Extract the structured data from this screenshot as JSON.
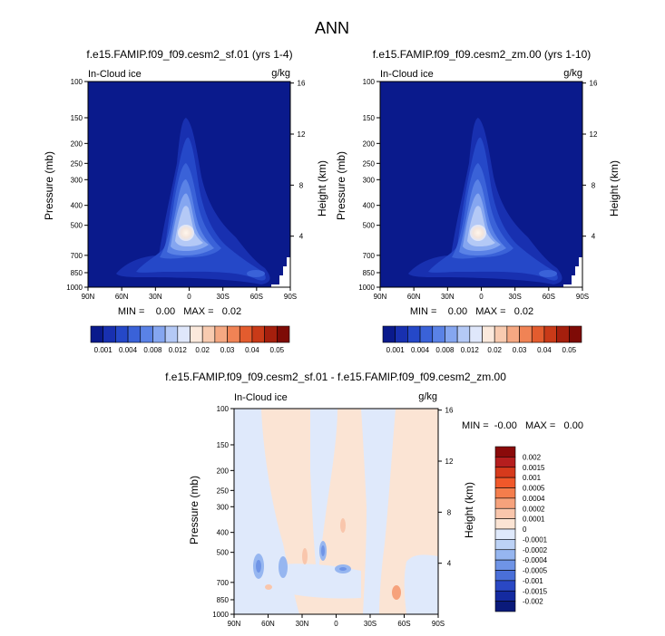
{
  "title": "ANN",
  "panel_a": {
    "title": "f.e15.FAMIP.f09_f09.cesm2_sf.01 (yrs 1-4)",
    "variable": "In-Cloud ice",
    "units": "g/kg",
    "stats": "MIN =    0.00   MAX =   0.02"
  },
  "panel_b": {
    "title": "f.e15.FAMIP.f09_f09.cesm2_zm.00 (yrs 1-10)",
    "variable": "In-Cloud ice",
    "units": "g/kg",
    "stats": "MIN =    0.00   MAX =   0.02"
  },
  "panel_c": {
    "title": "f.e15.FAMIP.f09_f09.cesm2_sf.01 - f.e15.FAMIP.f09_f09.cesm2_zm.00",
    "variable": "In-Cloud ice",
    "units": "g/kg",
    "stats": "MIN =  -0.00   MAX =   0.00"
  },
  "chart_data": [
    {
      "type": "heatmap",
      "title": "f.e15.FAMIP.f09_f09.cesm2_sf.01 (yrs 1-4)",
      "variable": "In-Cloud ice",
      "units": "g/kg",
      "xlabel": "",
      "ylabel": "Pressure (mb)",
      "y2label": "Height (km)",
      "xlim": [
        90,
        -90
      ],
      "ylim": [
        1000,
        100
      ],
      "x_ticks": [
        "90N",
        "60N",
        "30N",
        "0",
        "30S",
        "60S",
        "90S"
      ],
      "y_ticks": [
        100,
        150,
        200,
        250,
        300,
        400,
        500,
        700,
        850,
        1000
      ],
      "y2_ticks": [
        4,
        8,
        12,
        16
      ],
      "min": 0.0,
      "max": 0.02,
      "colorbar_levels": [
        0.001,
        0.002,
        0.003,
        0.004,
        0.006,
        0.008,
        0.01,
        0.012,
        0.015,
        0.02,
        0.025,
        0.03,
        0.035,
        0.04,
        0.045,
        0.05
      ],
      "colorbar_labels": [
        "0.001",
        "0.004",
        "0.008",
        "0.012",
        "0.02",
        "0.03",
        "0.04",
        "0.05"
      ]
    },
    {
      "type": "heatmap",
      "title": "f.e15.FAMIP.f09_f09.cesm2_zm.00 (yrs 1-10)",
      "variable": "In-Cloud ice",
      "units": "g/kg",
      "xlabel": "",
      "ylabel": "Pressure (mb)",
      "y2label": "Height (km)",
      "xlim": [
        90,
        -90
      ],
      "ylim": [
        1000,
        100
      ],
      "x_ticks": [
        "90N",
        "60N",
        "30N",
        "0",
        "30S",
        "60S",
        "90S"
      ],
      "y_ticks": [
        100,
        150,
        200,
        250,
        300,
        400,
        500,
        700,
        850,
        1000
      ],
      "y2_ticks": [
        4,
        8,
        12,
        16
      ],
      "min": 0.0,
      "max": 0.02,
      "colorbar_levels": [
        0.001,
        0.002,
        0.003,
        0.004,
        0.006,
        0.008,
        0.01,
        0.012,
        0.015,
        0.02,
        0.025,
        0.03,
        0.035,
        0.04,
        0.045,
        0.05
      ],
      "colorbar_labels": [
        "0.001",
        "0.004",
        "0.008",
        "0.012",
        "0.02",
        "0.03",
        "0.04",
        "0.05"
      ]
    },
    {
      "type": "heatmap",
      "title": "f.e15.FAMIP.f09_f09.cesm2_sf.01 - f.e15.FAMIP.f09_f09.cesm2_zm.00",
      "variable": "In-Cloud ice",
      "units": "g/kg",
      "xlabel": "",
      "ylabel": "Pressure (mb)",
      "y2label": "Height (km)",
      "xlim": [
        90,
        -90
      ],
      "ylim": [
        1000,
        100
      ],
      "x_ticks": [
        "90N",
        "60N",
        "30N",
        "0",
        "30S",
        "60S",
        "90S"
      ],
      "y_ticks": [
        100,
        150,
        200,
        250,
        300,
        400,
        500,
        700,
        850,
        1000
      ],
      "y2_ticks": [
        4,
        8,
        12,
        16
      ],
      "min": -0.0,
      "max": 0.0,
      "colorbar_labels": [
        "0.002",
        "0.0015",
        "0.001",
        "0.0005",
        "0.0004",
        "0.0002",
        "0.0001",
        "0",
        "-0.0001",
        "-0.0002",
        "-0.0004",
        "-0.0005",
        "-0.001",
        "-0.0015",
        "-0.002"
      ]
    }
  ],
  "colors": {
    "seq": [
      "#0a1a8c",
      "#1830b0",
      "#2548c8",
      "#3a62d8",
      "#5a82e6",
      "#85a6f0",
      "#b4c9f6",
      "#dfe7fb",
      "#fbe9dc",
      "#f8cbb0",
      "#f5a882",
      "#f08355",
      "#e35c2e",
      "#c93a18",
      "#a51f0d",
      "#7e0b06"
    ],
    "div": [
      "#8a0a0a",
      "#b51e1e",
      "#d63a1c",
      "#f0582a",
      "#f47d4c",
      "#f6a27c",
      "#f9c6ac",
      "#fbe4d4",
      "#dfe9fb",
      "#bcd2f6",
      "#96b6f0",
      "#6f94e6",
      "#4a6fd8",
      "#2a48c4",
      "#142aa0",
      "#0a1a7a"
    ]
  }
}
